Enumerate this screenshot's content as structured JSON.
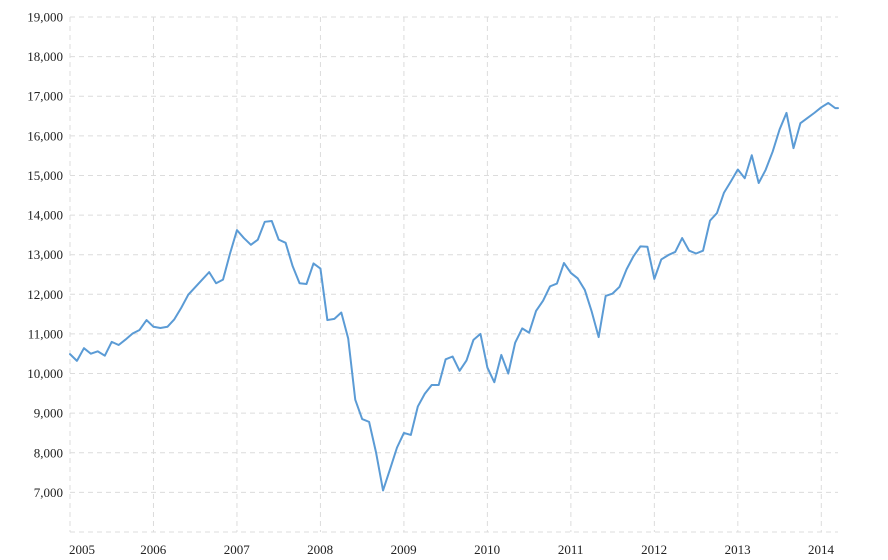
{
  "chart_data": {
    "type": "line",
    "title": "",
    "xlabel": "",
    "ylabel": "",
    "ylim": [
      6000,
      19000
    ],
    "xlim": [
      2005.0,
      2014.2
    ],
    "grid": true,
    "colors": {
      "series": "#5b9bd5",
      "grid": "#dcdcdc",
      "text": "#222222"
    },
    "y_ticks": [
      {
        "value": 7000,
        "label": "7,000"
      },
      {
        "value": 8000,
        "label": "8,000"
      },
      {
        "value": 9000,
        "label": "9,000"
      },
      {
        "value": 10000,
        "label": "10,000"
      },
      {
        "value": 11000,
        "label": "11,000"
      },
      {
        "value": 12000,
        "label": "12,000"
      },
      {
        "value": 13000,
        "label": "13,000"
      },
      {
        "value": 14000,
        "label": "14,000"
      },
      {
        "value": 15000,
        "label": "15,000"
      },
      {
        "value": 16000,
        "label": "16,000"
      },
      {
        "value": 17000,
        "label": "17,000"
      },
      {
        "value": 18000,
        "label": "18,000"
      },
      {
        "value": 19000,
        "label": "19,000"
      }
    ],
    "x_ticks": [
      {
        "value": 2005,
        "label": "2005"
      },
      {
        "value": 2006,
        "label": "2006"
      },
      {
        "value": 2007,
        "label": "2007"
      },
      {
        "value": 2008,
        "label": "2008"
      },
      {
        "value": 2009,
        "label": "2009"
      },
      {
        "value": 2010,
        "label": "2010"
      },
      {
        "value": 2011,
        "label": "2011"
      },
      {
        "value": 2012,
        "label": "2012"
      },
      {
        "value": 2013,
        "label": "2013"
      },
      {
        "value": 2014,
        "label": "2014"
      }
    ],
    "series": [
      {
        "x": [
          2005.0,
          2005.083,
          2005.167,
          2005.25,
          2005.333,
          2005.417,
          2005.5,
          2005.583,
          2005.667,
          2005.75,
          2005.833,
          2005.917,
          2006.0,
          2006.083,
          2006.167,
          2006.25,
          2006.333,
          2006.417,
          2006.5,
          2006.583,
          2006.667,
          2006.75,
          2006.833,
          2006.917,
          2007.0,
          2007.083,
          2007.167,
          2007.25,
          2007.333,
          2007.417,
          2007.5,
          2007.583,
          2007.667,
          2007.75,
          2007.833,
          2007.917,
          2008.0,
          2008.083,
          2008.167,
          2008.25,
          2008.333,
          2008.417,
          2008.5,
          2008.583,
          2008.667,
          2008.75,
          2008.833,
          2008.917,
          2009.0,
          2009.083,
          2009.167,
          2009.25,
          2009.333,
          2009.417,
          2009.5,
          2009.583,
          2009.667,
          2009.75,
          2009.833,
          2009.917,
          2010.0,
          2010.083,
          2010.167,
          2010.25,
          2010.333,
          2010.417,
          2010.5,
          2010.583,
          2010.667,
          2010.75,
          2010.833,
          2010.917,
          2011.0,
          2011.083,
          2011.167,
          2011.25,
          2011.333,
          2011.417,
          2011.5,
          2011.583,
          2011.667,
          2011.75,
          2011.833,
          2011.917,
          2012.0,
          2012.083,
          2012.167,
          2012.25,
          2012.333,
          2012.417,
          2012.5,
          2012.583,
          2012.667,
          2012.75,
          2012.833,
          2012.917,
          2013.0,
          2013.083,
          2013.167,
          2013.25,
          2013.333,
          2013.417,
          2013.5,
          2013.583,
          2013.667,
          2013.75,
          2013.833,
          2013.917,
          2014.0,
          2014.083,
          2014.167,
          2014.2
        ],
        "values": [
          10490,
          10320,
          10640,
          10500,
          10560,
          10450,
          10800,
          10720,
          10860,
          11010,
          11100,
          11350,
          11180,
          11150,
          11180,
          11370,
          11660,
          11990,
          12180,
          12370,
          12560,
          12280,
          12370,
          13030,
          13620,
          13420,
          13250,
          13380,
          13830,
          13850,
          13380,
          13300,
          12710,
          12280,
          12260,
          12780,
          12650,
          11350,
          11380,
          11540,
          10880,
          9340,
          8850,
          8780,
          8000,
          7050,
          7580,
          8130,
          8500,
          8450,
          9170,
          9490,
          9710,
          9710,
          10360,
          10430,
          10070,
          10330,
          10850,
          11000,
          10150,
          9780,
          10470,
          10000,
          10780,
          11140,
          11030,
          11580,
          11840,
          12200,
          12270,
          12790,
          12540,
          12400,
          12110,
          11560,
          10920,
          11960,
          12020,
          12190,
          12630,
          12960,
          13210,
          13200,
          12390,
          12880,
          12990,
          13070,
          13420,
          13100,
          13030,
          13100,
          13860,
          14050,
          14560,
          14850,
          15150,
          14930,
          15510,
          14810,
          15140,
          15600,
          16160,
          16580,
          15690,
          16320,
          16450,
          16580,
          16720,
          16830,
          16700,
          16700
        ]
      }
    ]
  }
}
